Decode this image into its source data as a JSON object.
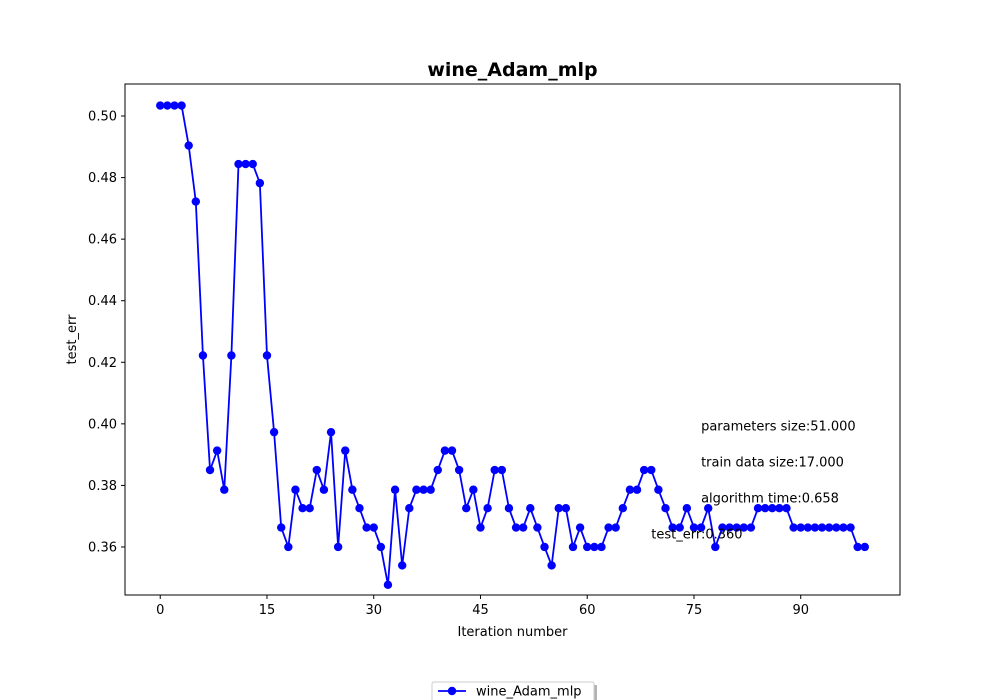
{
  "chart_data": {
    "type": "line",
    "title": "wine_Adam_mlp",
    "xlabel": "Iteration number",
    "ylabel": "test_err",
    "xlim": [
      -4.95,
      103.95
    ],
    "ylim": [
      0.3444,
      0.5104
    ],
    "xticks": [
      0,
      15,
      30,
      45,
      60,
      75,
      90
    ],
    "yticks": [
      0.36,
      0.38,
      0.4,
      0.42,
      0.44,
      0.46,
      0.48,
      0.5
    ],
    "xtick_labels": [
      "0",
      "15",
      "30",
      "45",
      "60",
      "75",
      "90"
    ],
    "ytick_labels": [
      "0.36",
      "0.38",
      "0.40",
      "0.42",
      "0.44",
      "0.46",
      "0.48",
      "0.50"
    ],
    "grid": false,
    "legend_position": "bottom-center",
    "series": [
      {
        "name": "wine_Adam_mlp",
        "color": "#0000ff",
        "marker": "circle",
        "x": [
          0,
          1,
          2,
          3,
          4,
          5,
          6,
          7,
          8,
          9,
          10,
          11,
          12,
          13,
          14,
          15,
          16,
          17,
          18,
          19,
          20,
          21,
          22,
          23,
          24,
          25,
          26,
          27,
          28,
          29,
          30,
          31,
          32,
          33,
          34,
          35,
          36,
          37,
          38,
          39,
          40,
          41,
          42,
          43,
          44,
          45,
          46,
          47,
          48,
          49,
          50,
          51,
          52,
          53,
          54,
          55,
          56,
          57,
          58,
          59,
          60,
          61,
          62,
          63,
          64,
          65,
          66,
          67,
          68,
          69,
          70,
          71,
          72,
          73,
          74,
          75,
          76,
          77,
          78,
          79,
          80,
          81,
          82,
          83,
          84,
          85,
          86,
          87,
          88,
          89,
          90,
          91,
          92,
          93,
          94,
          95,
          96,
          97,
          98,
          99
        ],
        "values": [
          0.5034,
          0.5034,
          0.5034,
          0.5034,
          0.4904,
          0.4722,
          0.4222,
          0.385,
          0.3913,
          0.3786,
          0.4222,
          0.4844,
          0.4844,
          0.4844,
          0.4782,
          0.4222,
          0.3973,
          0.3663,
          0.36,
          0.3786,
          0.3726,
          0.3726,
          0.385,
          0.3786,
          0.3973,
          0.36,
          0.3913,
          0.3786,
          0.3726,
          0.3663,
          0.3663,
          0.36,
          0.3477,
          0.3786,
          0.354,
          0.3726,
          0.3786,
          0.3786,
          0.3786,
          0.385,
          0.3913,
          0.3913,
          0.385,
          0.3726,
          0.3786,
          0.3663,
          0.3726,
          0.385,
          0.385,
          0.3726,
          0.3663,
          0.3663,
          0.3726,
          0.3663,
          0.36,
          0.354,
          0.3726,
          0.3726,
          0.36,
          0.3663,
          0.36,
          0.36,
          0.36,
          0.3663,
          0.3663,
          0.3726,
          0.3786,
          0.3786,
          0.385,
          0.385,
          0.3786,
          0.3726,
          0.3663,
          0.3663,
          0.3726,
          0.3663,
          0.3663,
          0.3726,
          0.36,
          0.3663,
          0.3663,
          0.3663,
          0.3663,
          0.3663,
          0.3726,
          0.3726,
          0.3726,
          0.3726,
          0.3726,
          0.3663,
          0.3663,
          0.3663,
          0.3663,
          0.3663,
          0.3663,
          0.3663,
          0.3663,
          0.3663,
          0.36,
          0.36
        ]
      }
    ],
    "annotations": [
      {
        "id": "params",
        "text": "parameters size:51.000",
        "x": 76,
        "y": 0.3978
      },
      {
        "id": "train",
        "text": "train data size:17.000",
        "x": 76,
        "y": 0.3862
      },
      {
        "id": "algtime",
        "text": "algorithm time:0.658",
        "x": 76,
        "y": 0.3745
      },
      {
        "id": "testerr",
        "text": "test_err:0.360",
        "x": 69,
        "y": 0.3628
      }
    ]
  }
}
